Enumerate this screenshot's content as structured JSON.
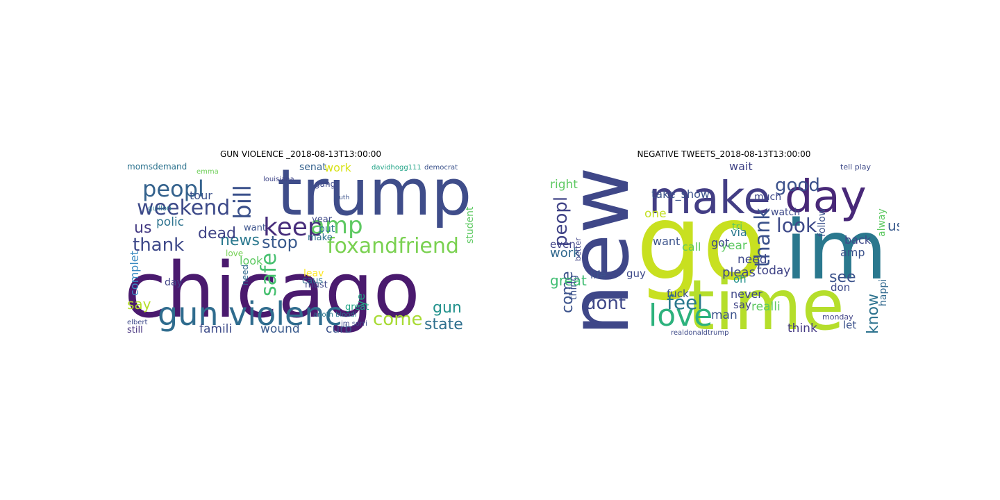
{
  "panels": [
    {
      "title": "GUN VIOLENCE _2018-08-13T13:00:00",
      "words": [
        {
          "text": "chicago",
          "color": "#4a1a6e"
        },
        {
          "text": "trump",
          "color": "#3f4d8a"
        },
        {
          "text": "gun violenc",
          "color": "#2f6c8e"
        },
        {
          "text": "weekend",
          "color": "#3d4a89"
        },
        {
          "text": "peopl",
          "color": "#34628d"
        },
        {
          "text": "keep",
          "color": "#472d7b"
        },
        {
          "text": "amp",
          "color": "#5ec962"
        },
        {
          "text": "foxandfriend",
          "color": "#7ad151"
        },
        {
          "text": "bill",
          "color": "#3b518b"
        },
        {
          "text": "stop",
          "color": "#38588c"
        },
        {
          "text": "news",
          "color": "#2a788e"
        },
        {
          "text": "thank",
          "color": "#3e4989"
        },
        {
          "text": "dead",
          "color": "#414487"
        },
        {
          "text": "us",
          "color": "#443a83"
        },
        {
          "text": "polic",
          "color": "#2c728e"
        },
        {
          "text": "safe",
          "color": "#46c06f"
        },
        {
          "text": "come",
          "color": "#a8db34"
        },
        {
          "text": "state",
          "color": "#2e6f8e"
        },
        {
          "text": "gun",
          "color": "#21918c"
        },
        {
          "text": "famili",
          "color": "#3e4c8a"
        },
        {
          "text": "wound",
          "color": "#38598c"
        },
        {
          "text": "curb",
          "color": "#3b528b"
        },
        {
          "text": "say",
          "color": "#b5de2b"
        },
        {
          "text": "complet",
          "color": "#3b8bc2"
        },
        {
          "text": "tour",
          "color": "#3b518b"
        },
        {
          "text": "look",
          "color": "#5ec962"
        },
        {
          "text": "momsdemand",
          "color": "#2c728e"
        },
        {
          "text": "senat",
          "color": "#34618d"
        },
        {
          "text": "work",
          "color": "#d8e219"
        },
        {
          "text": "gang",
          "color": "#3f4889"
        },
        {
          "text": "put",
          "color": "#2a768e"
        },
        {
          "text": "year",
          "color": "#3e4a89"
        },
        {
          "text": "want",
          "color": "#3b528b"
        },
        {
          "text": "love",
          "color": "#75d054"
        },
        {
          "text": "great",
          "color": "#20a386"
        },
        {
          "text": "student",
          "color": "#5ec962"
        },
        {
          "text": "must",
          "color": "#3f4889"
        },
        {
          "text": "make",
          "color": "#2c728e"
        },
        {
          "text": "leav",
          "color": "#fde725"
        },
        {
          "text": "caus",
          "color": "#2d708e"
        },
        {
          "text": "day",
          "color": "#414487"
        },
        {
          "text": "ye",
          "color": "#22a884"
        },
        {
          "text": "need",
          "color": "#31688e"
        },
        {
          "text": "still",
          "color": "#46327e"
        },
        {
          "text": "davidhogg111",
          "color": "#20a386"
        },
        {
          "text": "democrat",
          "color": "#3b528b"
        },
        {
          "text": "louisiana",
          "color": "#404688"
        },
        {
          "text": "guillori",
          "color": "#2a768e"
        },
        {
          "text": "emma",
          "color": "#6ece58"
        },
        {
          "text": "truth",
          "color": "#3b528b"
        },
        {
          "text": "im sorri",
          "color": "#3f4889"
        },
        {
          "text": "anoth bloodi",
          "color": "#2a788e"
        },
        {
          "text": "elbert",
          "color": "#3e4a89"
        }
      ]
    },
    {
      "title": "NEGATIVE TWEETS_2018-08-13T13:00:00",
      "words": [
        {
          "text": "new",
          "color": "#3f4788"
        },
        {
          "text": "go",
          "color": "#c8e020"
        },
        {
          "text": "im",
          "color": "#2a788e"
        },
        {
          "text": "time",
          "color": "#b5de2b"
        },
        {
          "text": "make",
          "color": "#433e85"
        },
        {
          "text": "day",
          "color": "#482878"
        },
        {
          "text": "love",
          "color": "#2db27d"
        },
        {
          "text": "good",
          "color": "#3b518b"
        },
        {
          "text": "thank",
          "color": "#3b528b"
        },
        {
          "text": "look",
          "color": "#3e4a89"
        },
        {
          "text": "feel",
          "color": "#2a788e"
        },
        {
          "text": "dont",
          "color": "#3f4889"
        },
        {
          "text": "peopl",
          "color": "#414487"
        },
        {
          "text": "know",
          "color": "#2c728e"
        },
        {
          "text": "see",
          "color": "#3b528b"
        },
        {
          "text": "us",
          "color": "#38598c"
        },
        {
          "text": "come",
          "color": "#3b528b"
        },
        {
          "text": "great",
          "color": "#40bd72"
        },
        {
          "text": "work",
          "color": "#31688e"
        },
        {
          "text": "right",
          "color": "#5ec962"
        },
        {
          "text": "one",
          "color": "#c2df23"
        },
        {
          "text": "want",
          "color": "#3b528b"
        },
        {
          "text": "call",
          "color": "#5ec962"
        },
        {
          "text": "year",
          "color": "#5ec962"
        },
        {
          "text": "need",
          "color": "#3f4889"
        },
        {
          "text": "via",
          "color": "#2a788e"
        },
        {
          "text": "pleas",
          "color": "#3e4989"
        },
        {
          "text": "today",
          "color": "#414487"
        },
        {
          "text": "realli",
          "color": "#5ec962"
        },
        {
          "text": "man",
          "color": "#3b528b"
        },
        {
          "text": "think",
          "color": "#443983"
        },
        {
          "text": "got",
          "color": "#3e4a89"
        },
        {
          "text": "take_show",
          "color": "#3b528b"
        },
        {
          "text": "wait",
          "color": "#414487"
        },
        {
          "text": "much",
          "color": "#3f4889"
        },
        {
          "text": "watch",
          "color": "#3e4a89"
        },
        {
          "text": "back",
          "color": "#3f4889"
        },
        {
          "text": "amp",
          "color": "#3b528b"
        },
        {
          "text": "never",
          "color": "#3f4889"
        },
        {
          "text": "say",
          "color": "#414487"
        },
        {
          "text": "fuck",
          "color": "#3b528b"
        },
        {
          "text": "guy",
          "color": "#3e4a89"
        },
        {
          "text": "life",
          "color": "#3b528b"
        },
        {
          "text": "even",
          "color": "#414487"
        },
        {
          "text": "tri",
          "color": "#5ec962"
        },
        {
          "text": "oh",
          "color": "#21918c"
        },
        {
          "text": "don",
          "color": "#3e4a89"
        },
        {
          "text": "follow",
          "color": "#3b528b"
        },
        {
          "text": "happi",
          "color": "#31688e"
        },
        {
          "text": "alway",
          "color": "#5ec962"
        },
        {
          "text": "realdonaldtrump",
          "color": "#3e4a89"
        },
        {
          "text": "let",
          "color": "#3b528b"
        },
        {
          "text": "tell play",
          "color": "#3e4a89"
        },
        {
          "text": "monday",
          "color": "#414487"
        },
        {
          "text": "thing",
          "color": "#3b528b"
        },
        {
          "text": "better",
          "color": "#414487"
        }
      ]
    }
  ]
}
